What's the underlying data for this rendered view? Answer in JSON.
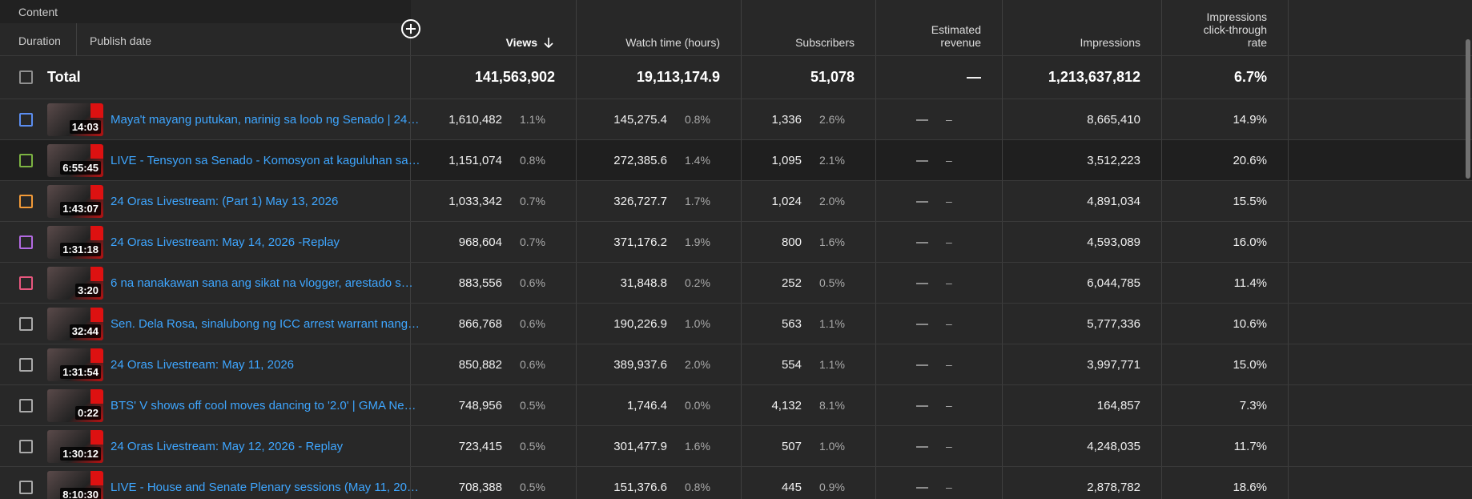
{
  "header": {
    "content_label": "Content",
    "tabs": [
      "Duration",
      "Publish date"
    ],
    "columns": [
      "Views",
      "Watch time (hours)",
      "Subscribers",
      "Estimated revenue",
      "Impressions",
      "Impressions click-through rate"
    ]
  },
  "total": {
    "label": "Total",
    "views": "141,563,902",
    "watch_time": "19,113,174.9",
    "subscribers": "51,078",
    "revenue": "—",
    "impressions": "1,213,637,812",
    "ctr": "6.7%"
  },
  "rows": [
    {
      "color": "#5b8def",
      "duration": "14:03",
      "title": "Maya't mayang putukan, narinig sa loob ng Senado | 24…",
      "views": "1,610,482",
      "views_pct": "1.1%",
      "watch_time": "145,275.4",
      "watch_pct": "0.8%",
      "subscribers": "1,336",
      "subs_pct": "2.6%",
      "revenue": "—",
      "revenue_pct": "–",
      "impressions": "8,665,410",
      "ctr": "14.9%"
    },
    {
      "color": "#7cb342",
      "duration": "6:55:45",
      "title": "LIVE - Tensyon sa Senado - Komosyon at kaguluhan sa…",
      "views": "1,151,074",
      "views_pct": "0.8%",
      "watch_time": "272,385.6",
      "watch_pct": "1.4%",
      "subscribers": "1,095",
      "subs_pct": "2.1%",
      "revenue": "—",
      "revenue_pct": "–",
      "impressions": "3,512,223",
      "ctr": "20.6%"
    },
    {
      "color": "#f29a38",
      "duration": "1:43:07",
      "title": "24 Oras Livestream: (Part 1) May 13, 2026",
      "views": "1,033,342",
      "views_pct": "0.7%",
      "watch_time": "326,727.7",
      "watch_pct": "1.7%",
      "subscribers": "1,024",
      "subs_pct": "2.0%",
      "revenue": "—",
      "revenue_pct": "–",
      "impressions": "4,891,034",
      "ctr": "15.5%"
    },
    {
      "color": "#b36ae2",
      "duration": "1:31:18",
      "title": "24 Oras Livestream: May 14, 2026 -Replay",
      "views": "968,604",
      "views_pct": "0.7%",
      "watch_time": "371,176.2",
      "watch_pct": "1.9%",
      "subscribers": "800",
      "subs_pct": "1.6%",
      "revenue": "—",
      "revenue_pct": "–",
      "impressions": "4,593,089",
      "ctr": "16.0%"
    },
    {
      "color": "#e8577e",
      "duration": "3:20",
      "title": "6 na nanakawan sana ang sikat na vlogger, arestado s…",
      "views": "883,556",
      "views_pct": "0.6%",
      "watch_time": "31,848.8",
      "watch_pct": "0.2%",
      "subscribers": "252",
      "subs_pct": "0.5%",
      "revenue": "—",
      "revenue_pct": "–",
      "impressions": "6,044,785",
      "ctr": "11.4%"
    },
    {
      "color": "#aaaaaa",
      "duration": "32:44",
      "title": "Sen. Dela Rosa, sinalubong ng ICC arrest warrant nang…",
      "views": "866,768",
      "views_pct": "0.6%",
      "watch_time": "190,226.9",
      "watch_pct": "1.0%",
      "subscribers": "563",
      "subs_pct": "1.1%",
      "revenue": "—",
      "revenue_pct": "–",
      "impressions": "5,777,336",
      "ctr": "10.6%"
    },
    {
      "color": "#aaaaaa",
      "duration": "1:31:54",
      "title": "24 Oras Livestream: May 11, 2026",
      "views": "850,882",
      "views_pct": "0.6%",
      "watch_time": "389,937.6",
      "watch_pct": "2.0%",
      "subscribers": "554",
      "subs_pct": "1.1%",
      "revenue": "—",
      "revenue_pct": "–",
      "impressions": "3,997,771",
      "ctr": "15.0%"
    },
    {
      "color": "#aaaaaa",
      "duration": "0:22",
      "title": "BTS' V shows off cool moves dancing to '2.0' | GMA Ne…",
      "views": "748,956",
      "views_pct": "0.5%",
      "watch_time": "1,746.4",
      "watch_pct": "0.0%",
      "subscribers": "4,132",
      "subs_pct": "8.1%",
      "revenue": "—",
      "revenue_pct": "–",
      "impressions": "164,857",
      "ctr": "7.3%"
    },
    {
      "color": "#aaaaaa",
      "duration": "1:30:12",
      "title": "24 Oras Livestream: May 12, 2026 - Replay",
      "views": "723,415",
      "views_pct": "0.5%",
      "watch_time": "301,477.9",
      "watch_pct": "1.6%",
      "subscribers": "507",
      "subs_pct": "1.0%",
      "revenue": "—",
      "revenue_pct": "–",
      "impressions": "4,248,035",
      "ctr": "11.7%"
    },
    {
      "color": "#aaaaaa",
      "duration": "8:10:30",
      "title": "LIVE - House and Senate Plenary sessions (May 11, 20…",
      "views": "708,388",
      "views_pct": "0.5%",
      "watch_time": "151,376.6",
      "watch_pct": "0.8%",
      "subscribers": "445",
      "subs_pct": "0.9%",
      "revenue": "—",
      "revenue_pct": "–",
      "impressions": "2,878,782",
      "ctr": "18.6%"
    }
  ]
}
